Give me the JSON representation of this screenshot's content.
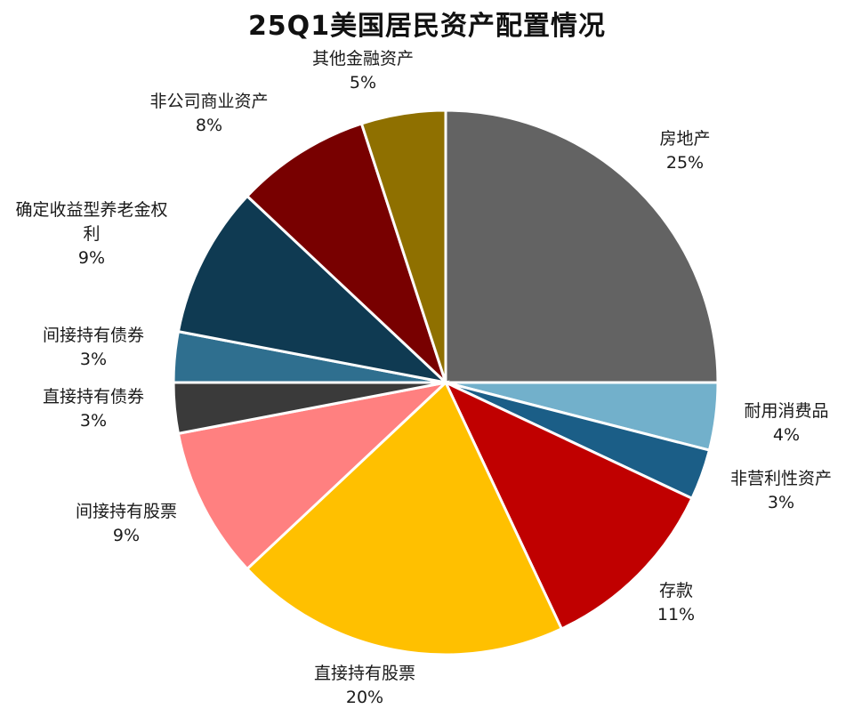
{
  "chart_data": {
    "type": "pie",
    "title": "25Q1美国居民资产配置情况",
    "start_angle_deg": 0,
    "direction": "clockwise",
    "slices": [
      {
        "label": "房地产",
        "value": 25,
        "value_label": "25%",
        "color": "#636363"
      },
      {
        "label": "耐用消费品",
        "value": 4,
        "value_label": "4%",
        "color": "#72B0CB"
      },
      {
        "label": "非营利性资产",
        "value": 3,
        "value_label": "3%",
        "color": "#1B5E87"
      },
      {
        "label": "存款",
        "value": 11,
        "value_label": "11%",
        "color": "#C00000"
      },
      {
        "label": "直接持有股票",
        "value": 20,
        "value_label": "20%",
        "color": "#FFC000"
      },
      {
        "label": "间接持有股票",
        "value": 9,
        "value_label": "9%",
        "color": "#FF8080"
      },
      {
        "label": "直接持有债券",
        "value": 3,
        "value_label": "3%",
        "color": "#3A3A3A"
      },
      {
        "label": "间接持有债券",
        "value": 3,
        "value_label": "3%",
        "color": "#2F6F8F"
      },
      {
        "label": "确定收益型养老金权利",
        "value": 9,
        "value_label": "9%",
        "color": "#0F3A52"
      },
      {
        "label": "非公司商业资产",
        "value": 8,
        "value_label": "8%",
        "color": "#780000"
      },
      {
        "label": "其他金融资产",
        "value": 5,
        "value_label": "5%",
        "color": "#8F7000"
      }
    ]
  }
}
